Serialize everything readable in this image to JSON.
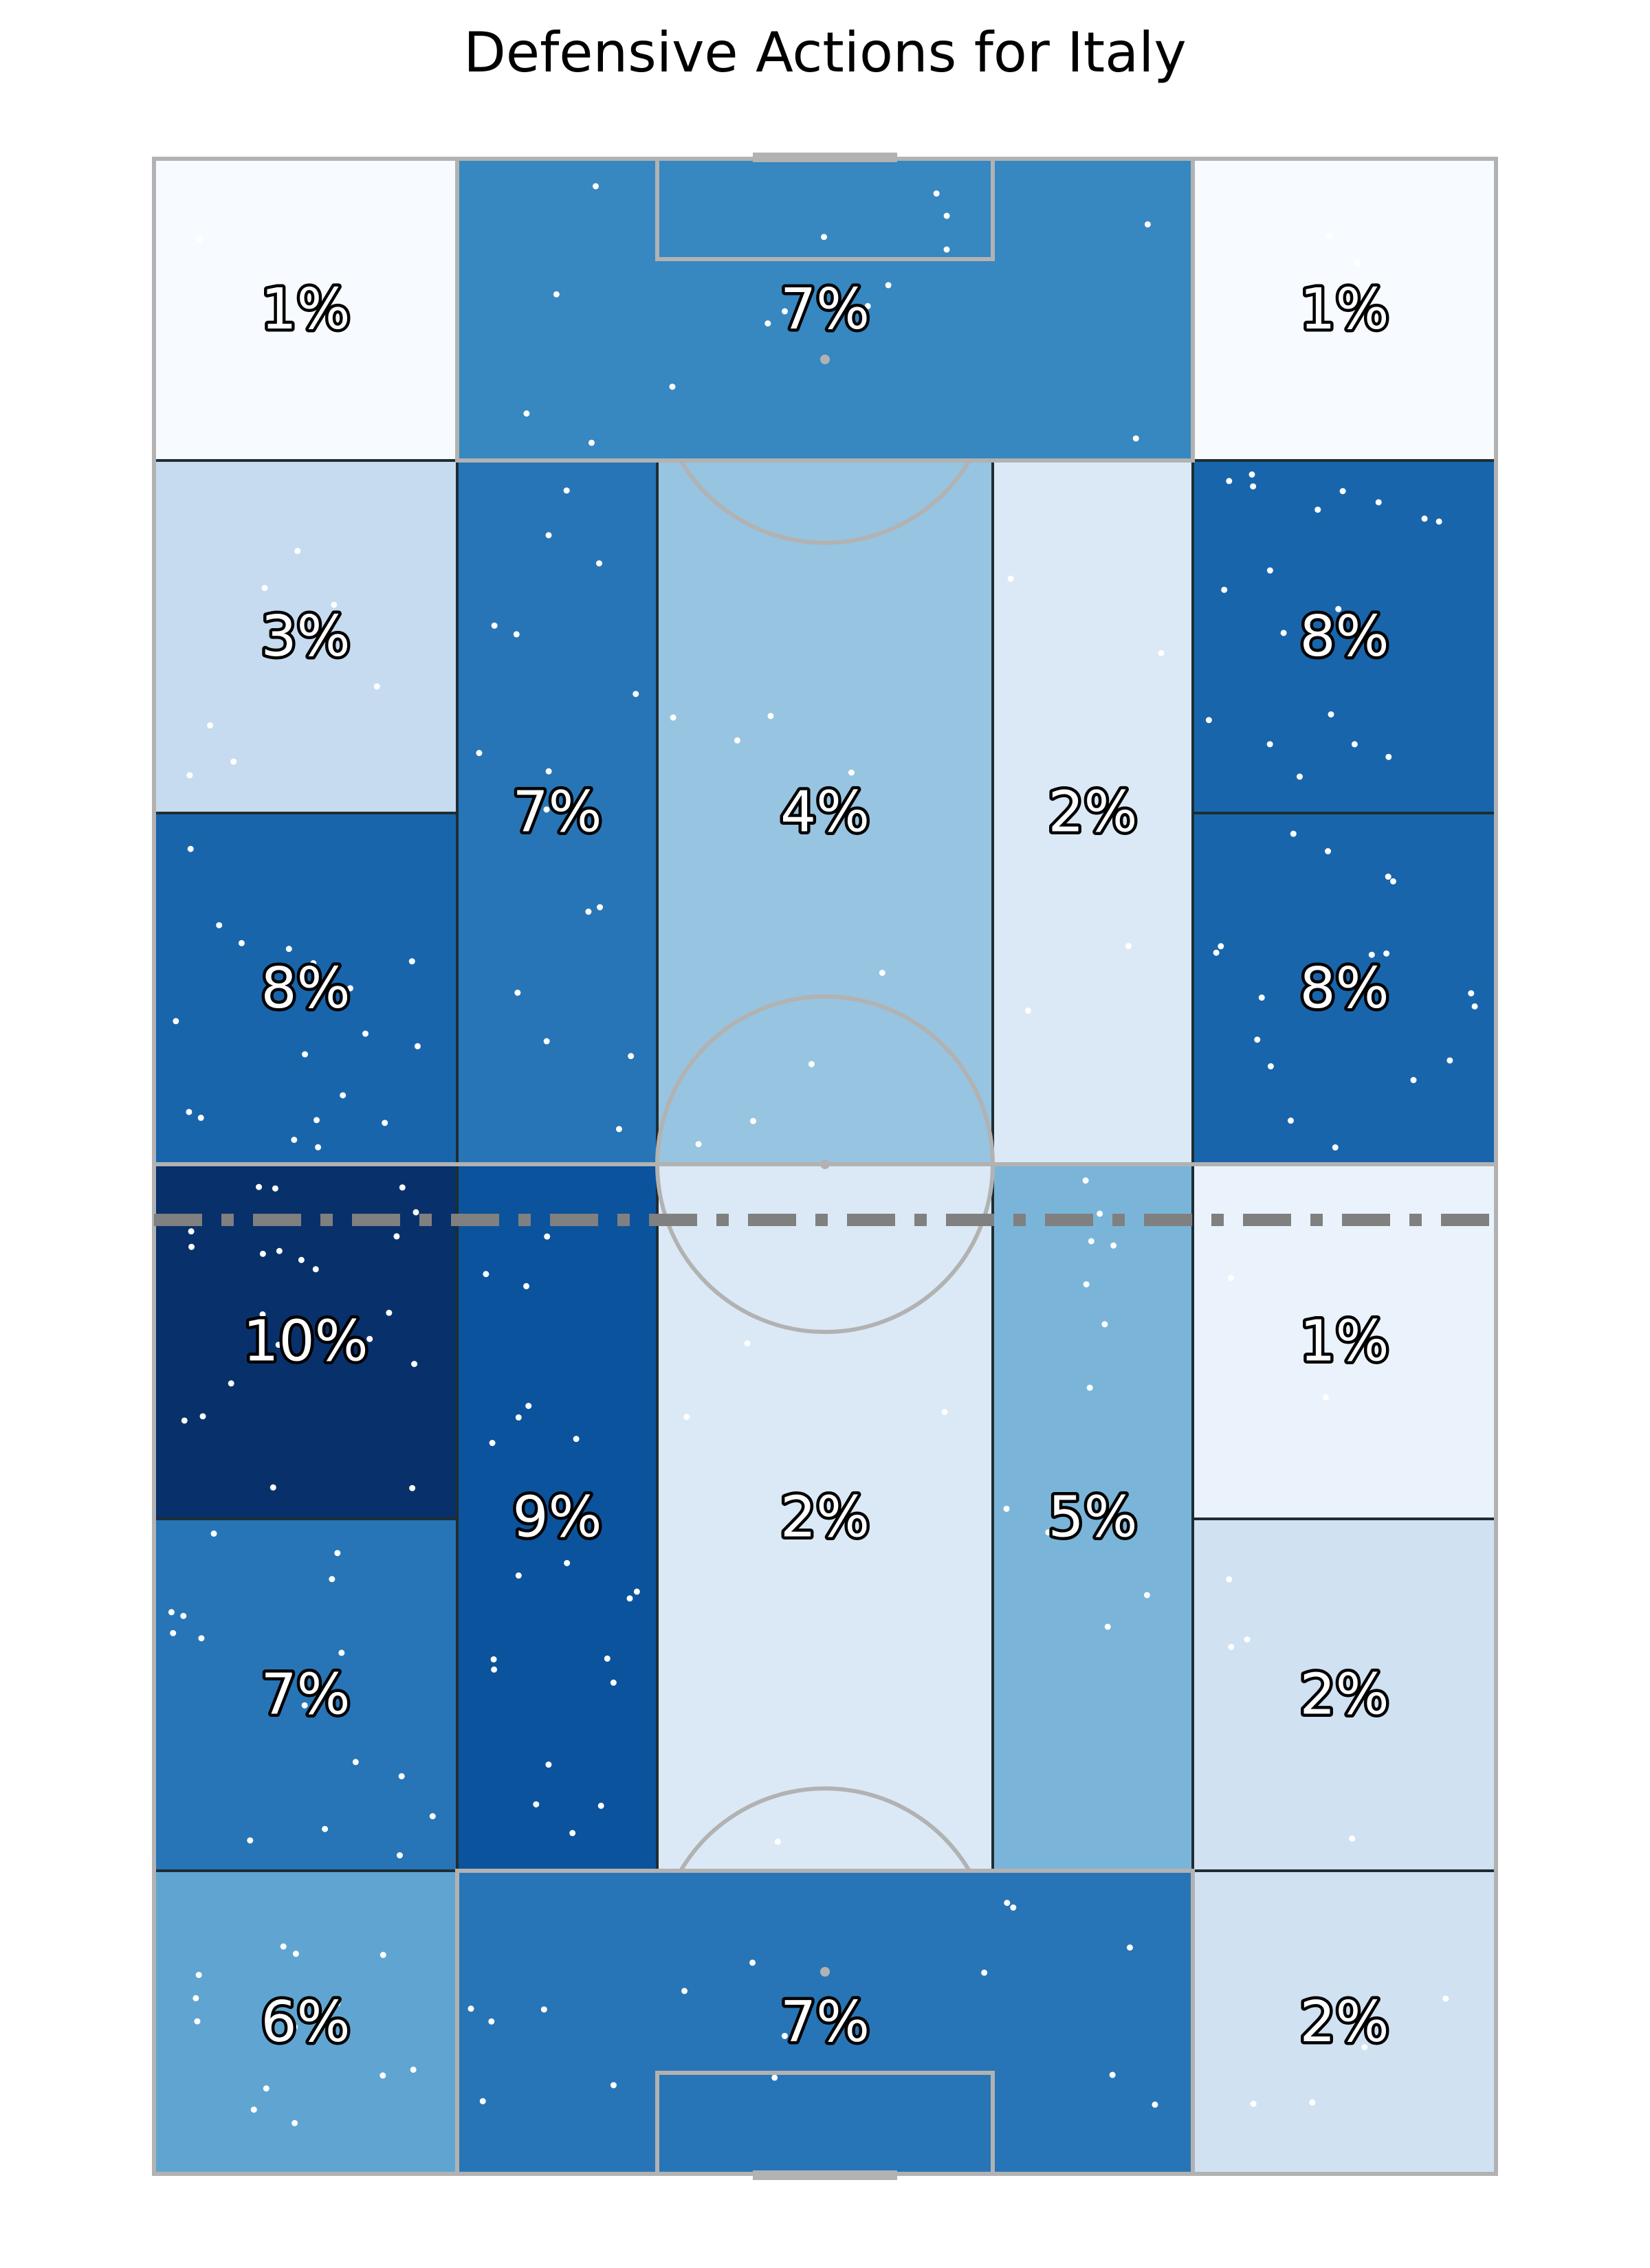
{
  "chart_data": {
    "type": "heatmap",
    "title": "Defensive Actions for Italy",
    "zones": [
      {
        "label": "1%",
        "value": 1,
        "color": "#f7fbff"
      },
      {
        "label": "7%",
        "value": 7,
        "color": "#3787c0"
      },
      {
        "label": "1%",
        "value": 1,
        "color": "#f7fbff"
      },
      {
        "label": "3%",
        "value": 3,
        "color": "#c6dbef"
      },
      {
        "label": "7%",
        "value": 7,
        "color": "#2775b6"
      },
      {
        "label": "4%",
        "value": 4,
        "color": "#97c4e0"
      },
      {
        "label": "2%",
        "value": 2,
        "color": "#dbe9f6"
      },
      {
        "label": "8%",
        "value": 8,
        "color": "#1865ac"
      },
      {
        "label": "8%",
        "value": 8,
        "color": "#1865ac"
      },
      {
        "label": "8%",
        "value": 8,
        "color": "#1865ac"
      },
      {
        "label": "10%",
        "value": 10,
        "color": "#08306b"
      },
      {
        "label": "9%",
        "value": 9,
        "color": "#0b539c"
      },
      {
        "label": "2%",
        "value": 2,
        "color": "#dbe9f6"
      },
      {
        "label": "5%",
        "value": 5,
        "color": "#7ab5d9"
      },
      {
        "label": "1%",
        "value": 1,
        "color": "#eaf3fc"
      },
      {
        "label": "7%",
        "value": 7,
        "color": "#2775b6"
      },
      {
        "label": "2%",
        "value": 2,
        "color": "#d0e1f2"
      },
      {
        "label": "6%",
        "value": 6,
        "color": "#60a5d1"
      },
      {
        "label": "7%",
        "value": 7,
        "color": "#2775b6"
      },
      {
        "label": "2%",
        "value": 2,
        "color": "#d0e1f2"
      }
    ],
    "colormap": "Blues",
    "pitch_line_color": "#b2b2b2",
    "average_line_color": "#808080"
  }
}
